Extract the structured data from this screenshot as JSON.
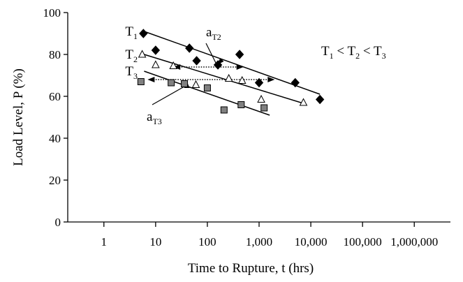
{
  "chart_data": {
    "type": "scatter",
    "x_scale": "log",
    "xlabel": "Time to Rupture, t (hrs)",
    "ylabel": "Load Level, P (%)",
    "ylim": [
      0,
      100
    ],
    "xlim": [
      0.2,
      5000000
    ],
    "x_ticks": [
      {
        "value": 1,
        "label": "1"
      },
      {
        "value": 10,
        "label": "10"
      },
      {
        "value": 100,
        "label": "100"
      },
      {
        "value": 1000,
        "label": "1,000"
      },
      {
        "value": 10000,
        "label": "10,000"
      },
      {
        "value": 100000,
        "label": "100,000"
      },
      {
        "value": 1000000,
        "label": "1,000,000"
      }
    ],
    "y_ticks": [
      0,
      20,
      40,
      60,
      80,
      100
    ],
    "annotation": {
      "text": "T",
      "sub1": "1",
      "sub2": "2",
      "sub3": "3",
      "lt": " < "
    },
    "series": [
      {
        "label": "T",
        "sub": "1",
        "marker": "diamond",
        "color": "#000000",
        "points": [
          [
            5.8,
            90
          ],
          [
            10,
            82
          ],
          [
            45,
            83
          ],
          [
            62,
            77
          ],
          [
            160,
            75
          ],
          [
            420,
            80
          ],
          [
            1000,
            66.5
          ],
          [
            5000,
            66.5
          ],
          [
            15000,
            58.5
          ]
        ],
        "fit": [
          [
            6,
            91
          ],
          [
            15000,
            61
          ]
        ]
      },
      {
        "label": "T",
        "sub": "2",
        "marker": "triangle",
        "color": "#ffffff",
        "points": [
          [
            5.5,
            80
          ],
          [
            10,
            75
          ],
          [
            22,
            74.5
          ],
          [
            60,
            65.5
          ],
          [
            260,
            68.5
          ],
          [
            470,
            67.5
          ],
          [
            1100,
            58.5
          ],
          [
            7200,
            57
          ]
        ],
        "fit": [
          [
            6,
            80
          ],
          [
            7500,
            56.5
          ]
        ]
      },
      {
        "label": "T",
        "sub": "3",
        "marker": "square",
        "color": "#808080",
        "points": [
          [
            5.2,
            67
          ],
          [
            20,
            66.5
          ],
          [
            36,
            66
          ],
          [
            100,
            64
          ],
          [
            210,
            53.5
          ],
          [
            450,
            56
          ],
          [
            1250,
            54.5
          ]
        ],
        "fit": [
          [
            6,
            72
          ],
          [
            1600,
            51
          ]
        ]
      }
    ],
    "shift_arrows": [
      {
        "label": "a",
        "sub": "T2",
        "x1": 22,
        "x2": 500,
        "y": 74
      },
      {
        "label": "a",
        "sub": "T3",
        "x1": 7,
        "x2": 2000,
        "y": 68
      }
    ]
  }
}
